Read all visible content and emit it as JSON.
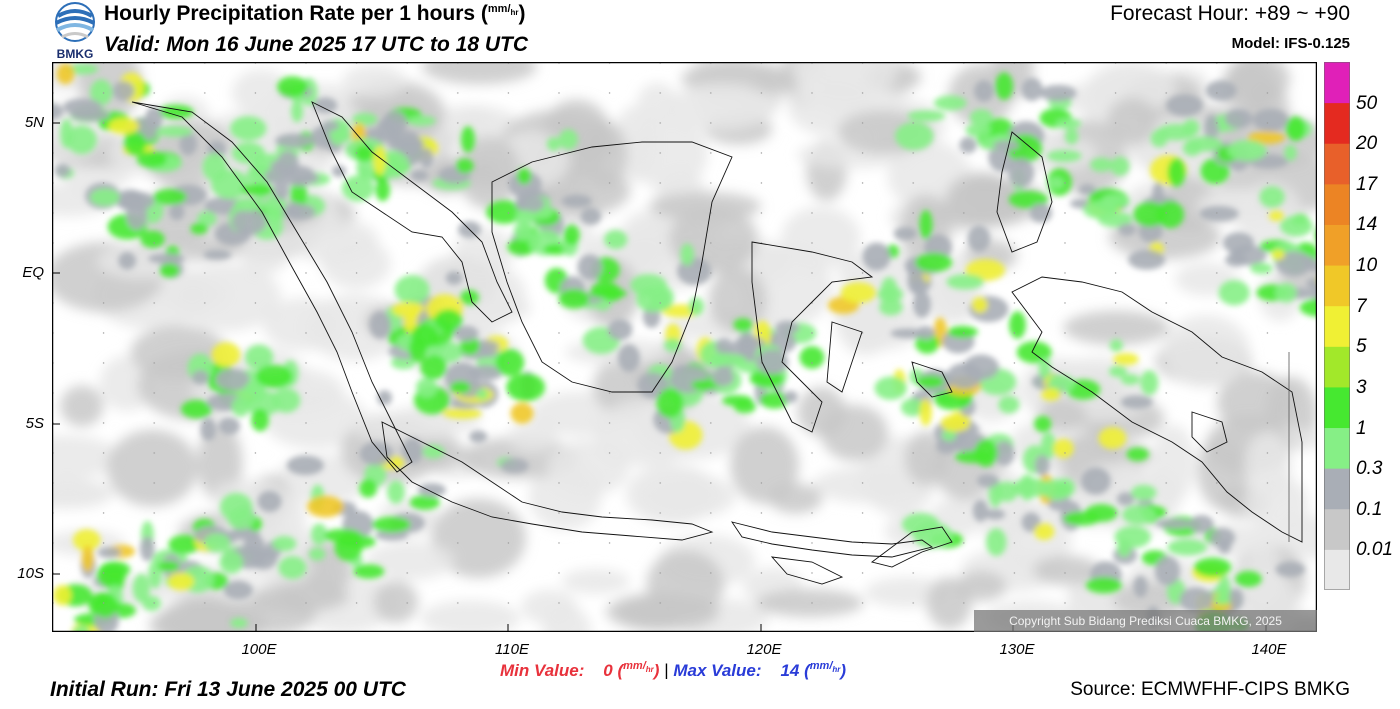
{
  "header": {
    "logo_text": "BMKG",
    "title": "Hourly Precipitation Rate per 1 hours (",
    "title_unit_num": "mm",
    "title_unit_den": "hr",
    "title_close": ")",
    "valid": "Valid: Mon 16 June 2025 17 UTC to 18 UTC",
    "forecast_hour": "Forecast Hour: +89 ~ +90",
    "model": "Model: IFS-0.125"
  },
  "map": {
    "lat_labels": [
      "5N",
      "EQ",
      "5S",
      "10S"
    ],
    "lon_labels": [
      "100E",
      "110E",
      "120E",
      "130E",
      "140E"
    ],
    "copyright": "Copyright Sub Bidang Prediksi Cuaca BMKG, 2025"
  },
  "colorbar": {
    "levels": [
      "0.01",
      "0.1",
      "0.3",
      "1",
      "3",
      "5",
      "7",
      "10",
      "14",
      "17",
      "20",
      "50"
    ],
    "colors": [
      "#e8e8e8",
      "#c8c8c8",
      "#a9aeb6",
      "#86ef86",
      "#46e830",
      "#a2e82a",
      "#f0f034",
      "#f0c828",
      "#f0a028",
      "#ec8424",
      "#e8602a",
      "#e42a20",
      "#e020b8"
    ]
  },
  "footer": {
    "min_label": "Min Value:",
    "min_value": "0",
    "max_label": "Max Value:",
    "max_value": "14",
    "unit_num": "mm",
    "unit_den": "hr",
    "separator": "|",
    "initial_run": "Initial Run: Fri 13 June 2025 00 UTC",
    "source": "Source: ECMWFHF-CIPS BMKG"
  }
}
